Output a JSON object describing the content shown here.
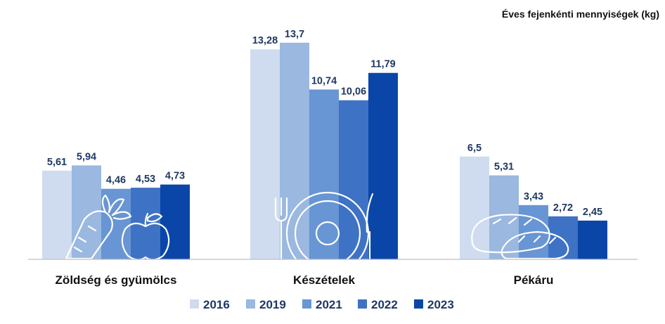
{
  "chart_data": {
    "type": "bar",
    "title": "",
    "unit_label": "Éves fejenkénti mennyiségek (kg)",
    "xlabel": "",
    "ylabel": "",
    "ylim": [
      0,
      15
    ],
    "grid": false,
    "legend_position": "bottom",
    "categories": [
      "Zöldség és gyümölcs",
      "Készételek",
      "Pékáru"
    ],
    "series": [
      {
        "name": "2016",
        "color": "#cfdcef",
        "values": [
          5.61,
          13.28,
          6.5
        ],
        "labels": [
          "5,61",
          "13,28",
          "6,5"
        ]
      },
      {
        "name": "2019",
        "color": "#9ab8e0",
        "values": [
          5.94,
          13.7,
          5.31
        ],
        "labels": [
          "5,94",
          "13,7",
          "5,31"
        ]
      },
      {
        "name": "2021",
        "color": "#6895d3",
        "values": [
          4.46,
          10.74,
          3.43
        ],
        "labels": [
          "4,46",
          "10,74",
          "3,43"
        ]
      },
      {
        "name": "2022",
        "color": "#3e72c4",
        "values": [
          4.53,
          10.06,
          2.72
        ],
        "labels": [
          "4,53",
          "10,06",
          "2,72"
        ]
      },
      {
        "name": "2023",
        "color": "#0a46a8",
        "values": [
          4.73,
          11.79,
          2.45
        ],
        "labels": [
          "4,73",
          "11,79",
          "2,45"
        ]
      }
    ],
    "category_icons": [
      "carrot-apple-icon",
      "plate-fork-knife-icon",
      "bread-icon"
    ]
  }
}
